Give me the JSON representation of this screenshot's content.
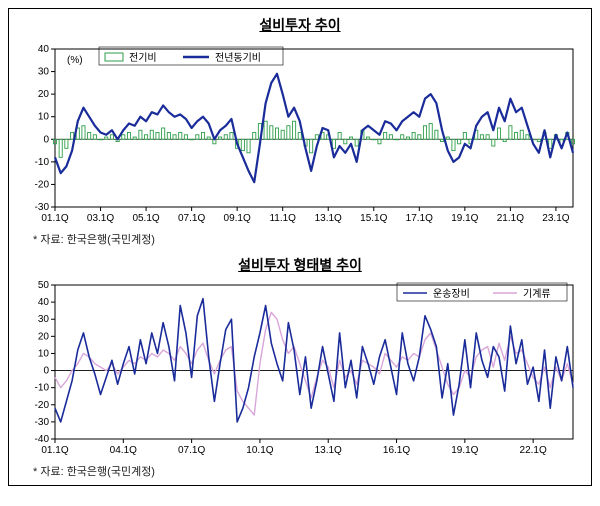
{
  "frame_border_color": "#000000",
  "background_color": "#ffffff",
  "chart1": {
    "type": "bar+line",
    "title": "설비투자 추이",
    "title_fontsize": 14,
    "title_color": "#000000",
    "unit_label": "(%)",
    "unit_fontsize": 10,
    "source": "* 자료: 한국은행(국민계정)",
    "source_fontsize": 11,
    "legend": {
      "items": [
        {
          "key": "bar",
          "label": "전기비",
          "color": "#2e9e4a",
          "style": "bar-outline"
        },
        {
          "key": "line",
          "label": "전년동기비",
          "color": "#1a2c9a",
          "style": "line-bold"
        }
      ],
      "fontsize": 10
    },
    "x_ticks": [
      "01.1Q",
      "03.1Q",
      "05.1Q",
      "07.1Q",
      "09.1Q",
      "11.1Q",
      "13.1Q",
      "15.1Q",
      "17.1Q",
      "19.1Q",
      "21.1Q",
      "23.1Q"
    ],
    "x_tick_interval_quarters": 8,
    "n_quarters": 92,
    "ylim": [
      -30,
      40
    ],
    "ytick_step": 10,
    "tick_fontsize": 10,
    "axis_color": "#000000",
    "grid_color": "none",
    "bar_color": "#2e9e4a",
    "bar_outline_only": true,
    "bar_width_ratio": 0.55,
    "line_color": "#1a2c9a",
    "line_width": 2.2,
    "bar_values": [
      -2,
      -8,
      -4,
      3,
      5,
      6,
      3,
      2,
      0,
      1,
      2,
      -1,
      2,
      3,
      1,
      4,
      2,
      4,
      3,
      5,
      3,
      2,
      3,
      2,
      0,
      2,
      3,
      1,
      -2,
      1,
      2,
      3,
      -4,
      -5,
      -6,
      3,
      7,
      8,
      6,
      5,
      4,
      6,
      8,
      3,
      -3,
      -6,
      2,
      3,
      2,
      -4,
      3,
      -2,
      1,
      -3,
      4,
      1,
      0,
      -2,
      3,
      2,
      0,
      2,
      1,
      3,
      2,
      6,
      7,
      4,
      -1,
      1,
      -5,
      -2,
      3,
      -2,
      4,
      2,
      2,
      -3,
      5,
      -1,
      6,
      3,
      4,
      2,
      0,
      -1,
      3,
      -4,
      2,
      -3,
      3,
      -2
    ],
    "line_values": [
      -8,
      -15,
      -12,
      -5,
      8,
      14,
      10,
      6,
      3,
      2,
      4,
      0,
      4,
      7,
      6,
      10,
      8,
      12,
      11,
      15,
      12,
      10,
      11,
      9,
      5,
      8,
      10,
      7,
      0,
      4,
      6,
      9,
      -2,
      -8,
      -14,
      -19,
      -2,
      16,
      25,
      29,
      20,
      10,
      14,
      8,
      -4,
      -14,
      -3,
      5,
      4,
      -8,
      -3,
      -6,
      -2,
      -10,
      4,
      6,
      4,
      2,
      8,
      7,
      4,
      8,
      10,
      12,
      10,
      18,
      20,
      16,
      4,
      -5,
      -10,
      -8,
      -2,
      -4,
      6,
      10,
      12,
      4,
      14,
      8,
      18,
      12,
      14,
      6,
      -2,
      -6,
      4,
      -8,
      2,
      -4,
      3,
      -6
    ]
  },
  "chart2": {
    "type": "multi-line",
    "title": "설비투자 형태별 추이",
    "title_fontsize": 14,
    "title_color": "#000000",
    "source": "* 자료: 한국은행(국민계정)",
    "source_fontsize": 11,
    "legend": {
      "items": [
        {
          "key": "s1",
          "label": "운송장비",
          "color": "#1a2c9a",
          "width": 1.6
        },
        {
          "key": "s2",
          "label": "기계류",
          "color": "#d9a6d9",
          "width": 1.4
        }
      ],
      "fontsize": 10
    },
    "x_ticks": [
      "01.1Q",
      "04.1Q",
      "07.1Q",
      "10.1Q",
      "13.1Q",
      "16.1Q",
      "19.1Q",
      "22.1Q"
    ],
    "x_tick_interval_quarters": 12,
    "n_quarters": 92,
    "ylim": [
      -40,
      50
    ],
    "ytick_step": 10,
    "tick_fontsize": 10,
    "axis_color": "#000000",
    "series": {
      "s1": {
        "color": "#1a2c9a",
        "width": 1.6,
        "values": [
          -22,
          -30,
          -18,
          -6,
          12,
          22,
          8,
          -2,
          -14,
          -4,
          6,
          -8,
          4,
          14,
          -2,
          18,
          4,
          22,
          10,
          28,
          14,
          -6,
          38,
          22,
          -4,
          32,
          42,
          8,
          -18,
          4,
          24,
          30,
          -30,
          -22,
          -10,
          8,
          22,
          38,
          16,
          4,
          -6,
          28,
          12,
          -14,
          8,
          -22,
          -6,
          14,
          -2,
          -18,
          22,
          -10,
          6,
          -16,
          14,
          4,
          -8,
          8,
          18,
          2,
          -14,
          22,
          4,
          -6,
          8,
          32,
          24,
          14,
          -16,
          4,
          -26,
          -8,
          18,
          -10,
          22,
          6,
          -4,
          14,
          8,
          -12,
          26,
          4,
          18,
          -8,
          2,
          -18,
          12,
          -22,
          8,
          -6,
          14,
          -10
        ]
      },
      "s2": {
        "color": "#d9a6d9",
        "width": 1.4,
        "values": [
          -4,
          -10,
          -6,
          0,
          4,
          10,
          8,
          4,
          2,
          0,
          4,
          -2,
          2,
          6,
          4,
          8,
          6,
          10,
          8,
          12,
          10,
          6,
          14,
          10,
          4,
          12,
          16,
          6,
          -2,
          6,
          12,
          14,
          -12,
          -18,
          -22,
          -26,
          4,
          24,
          34,
          30,
          18,
          10,
          14,
          4,
          -6,
          -16,
          -4,
          6,
          2,
          -10,
          6,
          -4,
          0,
          -8,
          6,
          4,
          2,
          -2,
          10,
          6,
          2,
          8,
          6,
          10,
          8,
          18,
          22,
          12,
          2,
          -8,
          -14,
          -10,
          0,
          -4,
          8,
          12,
          14,
          2,
          16,
          6,
          20,
          10,
          12,
          4,
          -4,
          -8,
          2,
          -10,
          2,
          -6,
          4,
          -8
        ]
      }
    }
  }
}
